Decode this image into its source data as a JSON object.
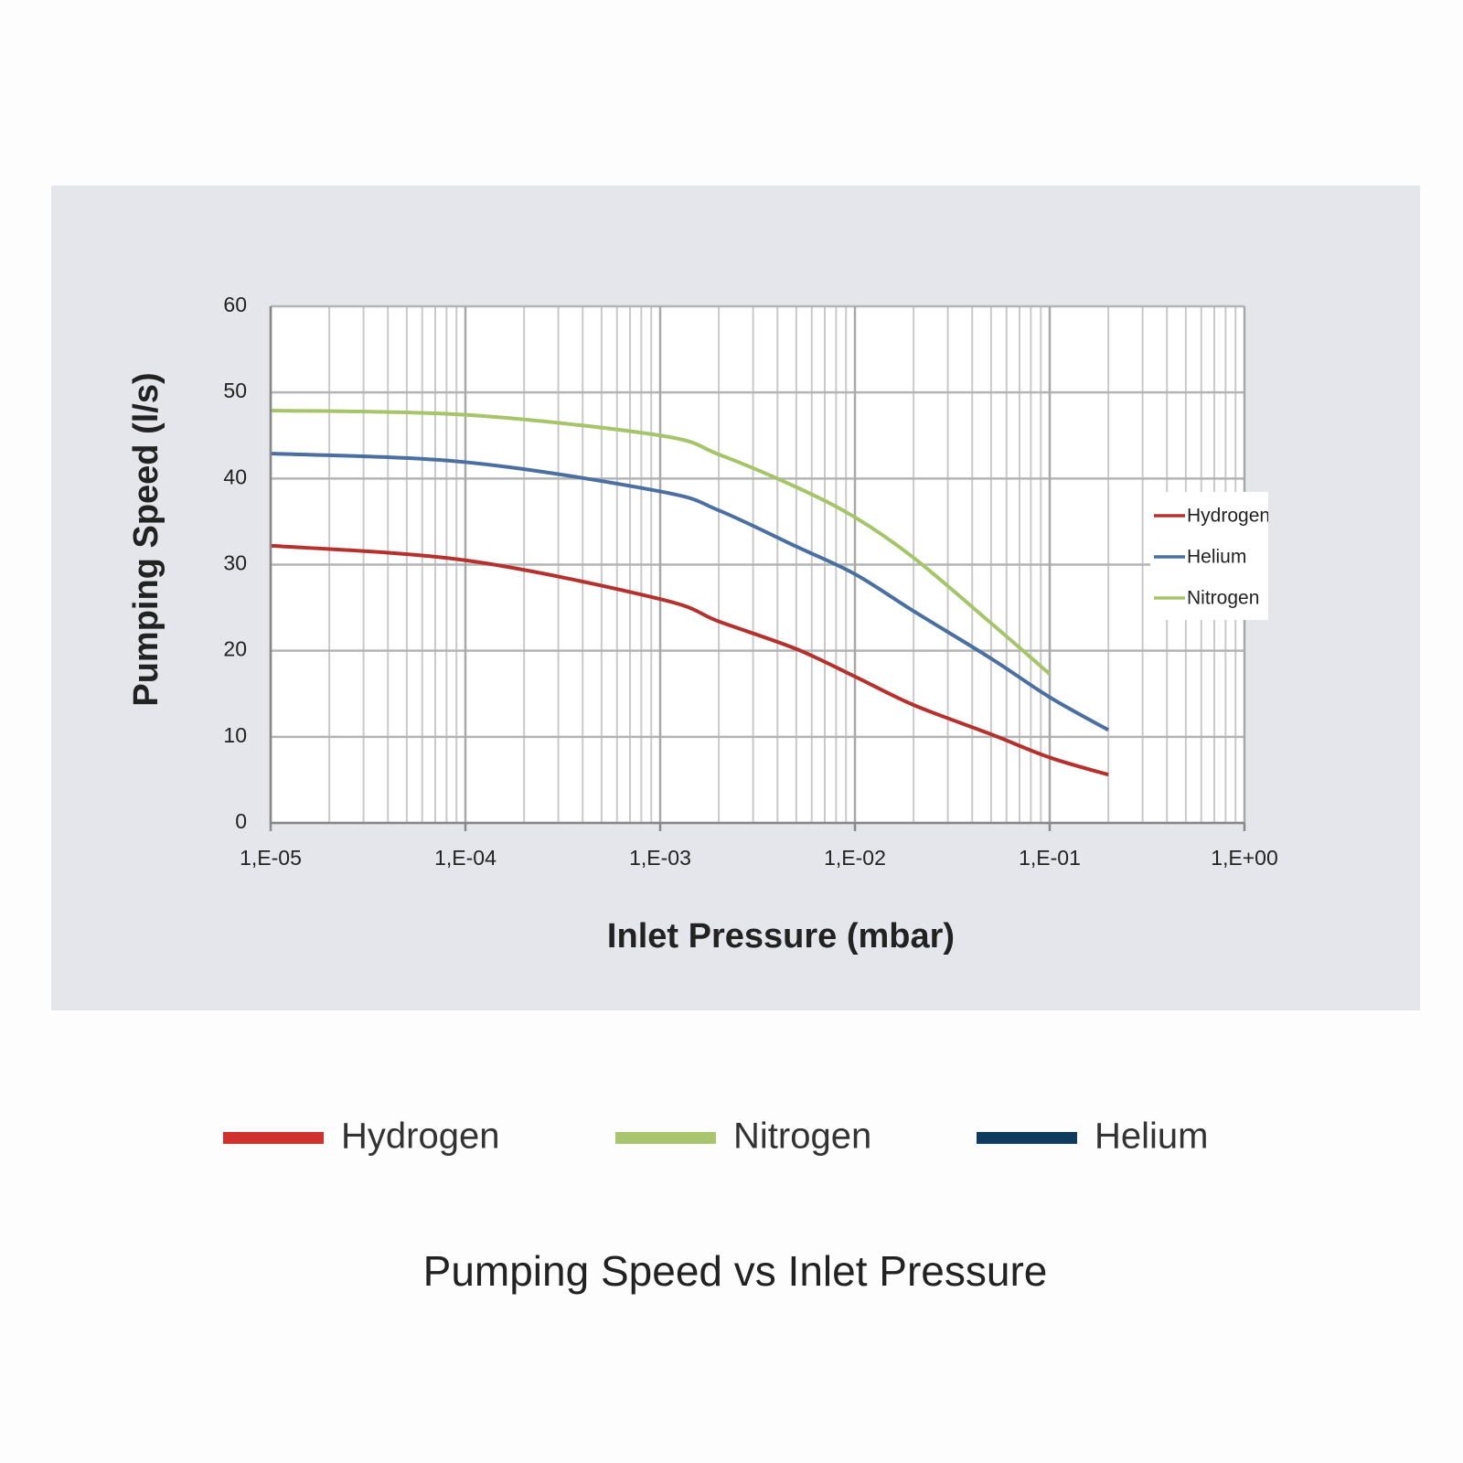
{
  "chart_data": {
    "type": "line",
    "x_label": "Inlet Pressure (mbar)",
    "y_label": "Pumping Speed (l/s)",
    "x": [
      1e-05,
      0.0001,
      0.001,
      0.002,
      0.005,
      0.01,
      0.02,
      0.05,
      0.1,
      0.2
    ],
    "series": [
      {
        "name": "Hydrogen",
        "color": "#b5312e",
        "values": [
          32.2,
          30.5,
          26,
          23.4,
          20.2,
          17,
          13.7,
          10.3,
          7.6,
          5.6
        ]
      },
      {
        "name": "Helium",
        "color": "#4a6fa0",
        "values": [
          42.9,
          41.9,
          38.5,
          36.3,
          32.1,
          28.9,
          24.6,
          19.1,
          14.6,
          10.8
        ]
      },
      {
        "name": "Nitrogen",
        "color": "#a6c56b",
        "values": [
          47.9,
          47.4,
          45,
          42.8,
          39,
          35.5,
          30.8,
          23.2,
          17.3,
          null
        ]
      }
    ],
    "xscale": "log",
    "xlim": [
      1e-05,
      1
    ],
    "xticks": [
      {
        "value": 1e-05,
        "label": "1,E-05"
      },
      {
        "value": 0.0001,
        "label": "1,E-04"
      },
      {
        "value": 0.001,
        "label": "1,E-03"
      },
      {
        "value": 0.01,
        "label": "1,E-02"
      },
      {
        "value": 0.1,
        "label": "1,E-01"
      },
      {
        "value": 1,
        "label": "1,E+00"
      }
    ],
    "ylim": [
      0,
      60
    ],
    "yticks": [
      0,
      10,
      20,
      30,
      40,
      50,
      60
    ],
    "grid": true,
    "legend": "right"
  },
  "key": [
    {
      "name": "Hydrogen",
      "color": "#d0312d"
    },
    {
      "name": "Nitrogen",
      "color": "#a9c66f"
    },
    {
      "name": "Helium",
      "color": "#0f3b5f"
    }
  ],
  "caption": "Pumping Speed vs Inlet Pressure"
}
